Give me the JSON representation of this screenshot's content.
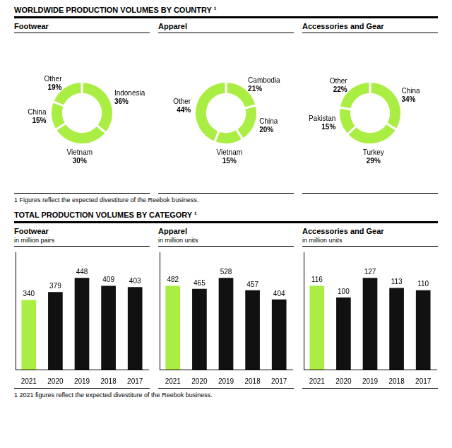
{
  "annotations": [
    "WORLDWIDE PRODUCTION VOLUMES BY COUNTRY ¹",
    "1 Figures reflect the expected divestiture of the Reebok business.",
    "TOTAL PRODUCTION VOLUMES BY CATEGORY ¹",
    "1 2021 figures reflect the expected divestiture of the Reebok business."
  ],
  "chart_data": [
    {
      "type": "doughnut",
      "title": "Footwear",
      "categories": [
        "Indonesia",
        "Vietnam",
        "China",
        "Other"
      ],
      "values": [
        36,
        30,
        15,
        19
      ],
      "value_labels": [
        "36%",
        "30%",
        "15%",
        "19%"
      ],
      "data_labels": true,
      "color": "#aaee44"
    },
    {
      "type": "doughnut",
      "title": "Apparel",
      "categories": [
        "Cambodia",
        "China",
        "Vietnam",
        "Other"
      ],
      "values": [
        21,
        20,
        15,
        44
      ],
      "value_labels": [
        "21%",
        "20%",
        "15%",
        "44%"
      ],
      "data_labels": true,
      "color": "#aaee44"
    },
    {
      "type": "doughnut",
      "title": "Accessories and Gear",
      "categories": [
        "China",
        "Turkey",
        "Pakistan",
        "Other"
      ],
      "values": [
        34,
        29,
        15,
        22
      ],
      "value_labels": [
        "34%",
        "29%",
        "15%",
        "22%"
      ],
      "data_labels": true,
      "color": "#aaee44"
    },
    {
      "type": "bar",
      "title": "Footwear",
      "subtitle": "in million pairs",
      "categories": [
        "2021",
        "2020",
        "2019",
        "2018",
        "2017"
      ],
      "values": [
        340,
        379,
        448,
        409,
        403
      ],
      "colors": [
        "#aaee44",
        "#111111",
        "#111111",
        "#111111",
        "#111111"
      ],
      "ylim": [
        0,
        573.44
      ],
      "data_labels": true,
      "tick_labels": "x",
      "grid": false
    },
    {
      "type": "bar",
      "title": "Apparel",
      "subtitle": "in million units",
      "categories": [
        "2021",
        "2020",
        "2019",
        "2018",
        "2017"
      ],
      "values": [
        482,
        465,
        528,
        457,
        404
      ],
      "colors": [
        "#aaee44",
        "#111111",
        "#111111",
        "#111111",
        "#111111"
      ],
      "ylim": [
        0,
        675.84
      ],
      "data_labels": true,
      "tick_labels": "x",
      "grid": false
    },
    {
      "type": "bar",
      "title": "Accessories and Gear",
      "subtitle": "in million units",
      "categories": [
        "2021",
        "2020",
        "2019",
        "2018",
        "2017"
      ],
      "values": [
        116,
        100,
        127,
        113,
        110
      ],
      "colors": [
        "#aaee44",
        "#111111",
        "#111111",
        "#111111",
        "#111111"
      ],
      "ylim": [
        0,
        162.56
      ],
      "data_labels": true,
      "tick_labels": "x",
      "grid": false
    }
  ]
}
